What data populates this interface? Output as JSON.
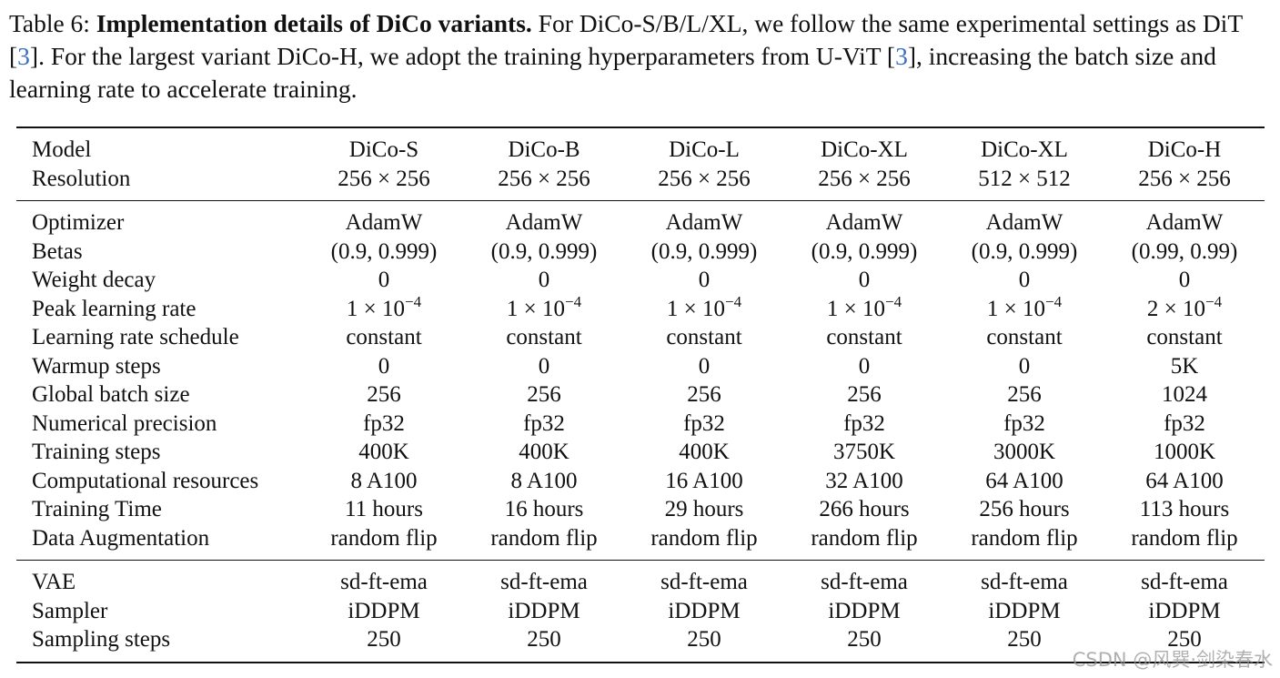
{
  "caption": {
    "label": "Table 6:",
    "title": "Implementation details of DiCo variants.",
    "body": [
      "For DiCo-S/B/L/XL, we follow the same experimental settings as DiT [",
      "3",
      "]. For the largest variant DiCo-H, we adopt the training hyperparameters from U-ViT [",
      "3",
      "], increasing the batch size and learning rate to accelerate training."
    ]
  },
  "table": {
    "header": [
      [
        "Model",
        "DiCo-S",
        "DiCo-B",
        "DiCo-L",
        "DiCo-XL",
        "DiCo-XL",
        "DiCo-H"
      ],
      [
        "Resolution",
        "256 × 256",
        "256 × 256",
        "256 × 256",
        "256 × 256",
        "512 × 512",
        "256 × 256"
      ]
    ],
    "sections": [
      [
        [
          "Optimizer",
          "AdamW",
          "AdamW",
          "AdamW",
          "AdamW",
          "AdamW",
          "AdamW"
        ],
        [
          "Betas",
          "(0.9, 0.999)",
          "(0.9, 0.999)",
          "(0.9, 0.999)",
          "(0.9, 0.999)",
          "(0.9, 0.999)",
          "(0.99, 0.99)"
        ],
        [
          "Weight decay",
          "0",
          "0",
          "0",
          "0",
          "0",
          "0"
        ],
        [
          "Peak learning rate",
          {
            "base": "1 × 10",
            "exp": "−4"
          },
          {
            "base": "1 × 10",
            "exp": "−4"
          },
          {
            "base": "1 × 10",
            "exp": "−4"
          },
          {
            "base": "1 × 10",
            "exp": "−4"
          },
          {
            "base": "1 × 10",
            "exp": "−4"
          },
          {
            "base": "2 × 10",
            "exp": "−4"
          }
        ],
        [
          "Learning rate schedule",
          "constant",
          "constant",
          "constant",
          "constant",
          "constant",
          "constant"
        ],
        [
          "Warmup steps",
          "0",
          "0",
          "0",
          "0",
          "0",
          "5K"
        ],
        [
          "Global batch size",
          "256",
          "256",
          "256",
          "256",
          "256",
          "1024"
        ],
        [
          "Numerical precision",
          "fp32",
          "fp32",
          "fp32",
          "fp32",
          "fp32",
          "fp32"
        ],
        [
          "Training steps",
          "400K",
          "400K",
          "400K",
          "3750K",
          "3000K",
          "1000K"
        ],
        [
          "Computational resources",
          "8 A100",
          "8 A100",
          "16 A100",
          "32 A100",
          "64 A100",
          "64 A100"
        ],
        [
          "Training Time",
          "11 hours",
          "16 hours",
          "29 hours",
          "266 hours",
          "256 hours",
          "113 hours"
        ],
        [
          "Data Augmentation",
          "random flip",
          "random flip",
          "random flip",
          "random flip",
          "random flip",
          "random flip"
        ]
      ],
      [
        [
          "VAE",
          "sd-ft-ema",
          "sd-ft-ema",
          "sd-ft-ema",
          "sd-ft-ema",
          "sd-ft-ema",
          "sd-ft-ema"
        ],
        [
          "Sampler",
          "iDDPM",
          "iDDPM",
          "iDDPM",
          "iDDPM",
          "iDDPM",
          "iDDPM"
        ],
        [
          "Sampling steps",
          "250",
          "250",
          "250",
          "250",
          "250",
          "250"
        ]
      ]
    ]
  },
  "watermark": "CSDN @风巽·剑染春水"
}
